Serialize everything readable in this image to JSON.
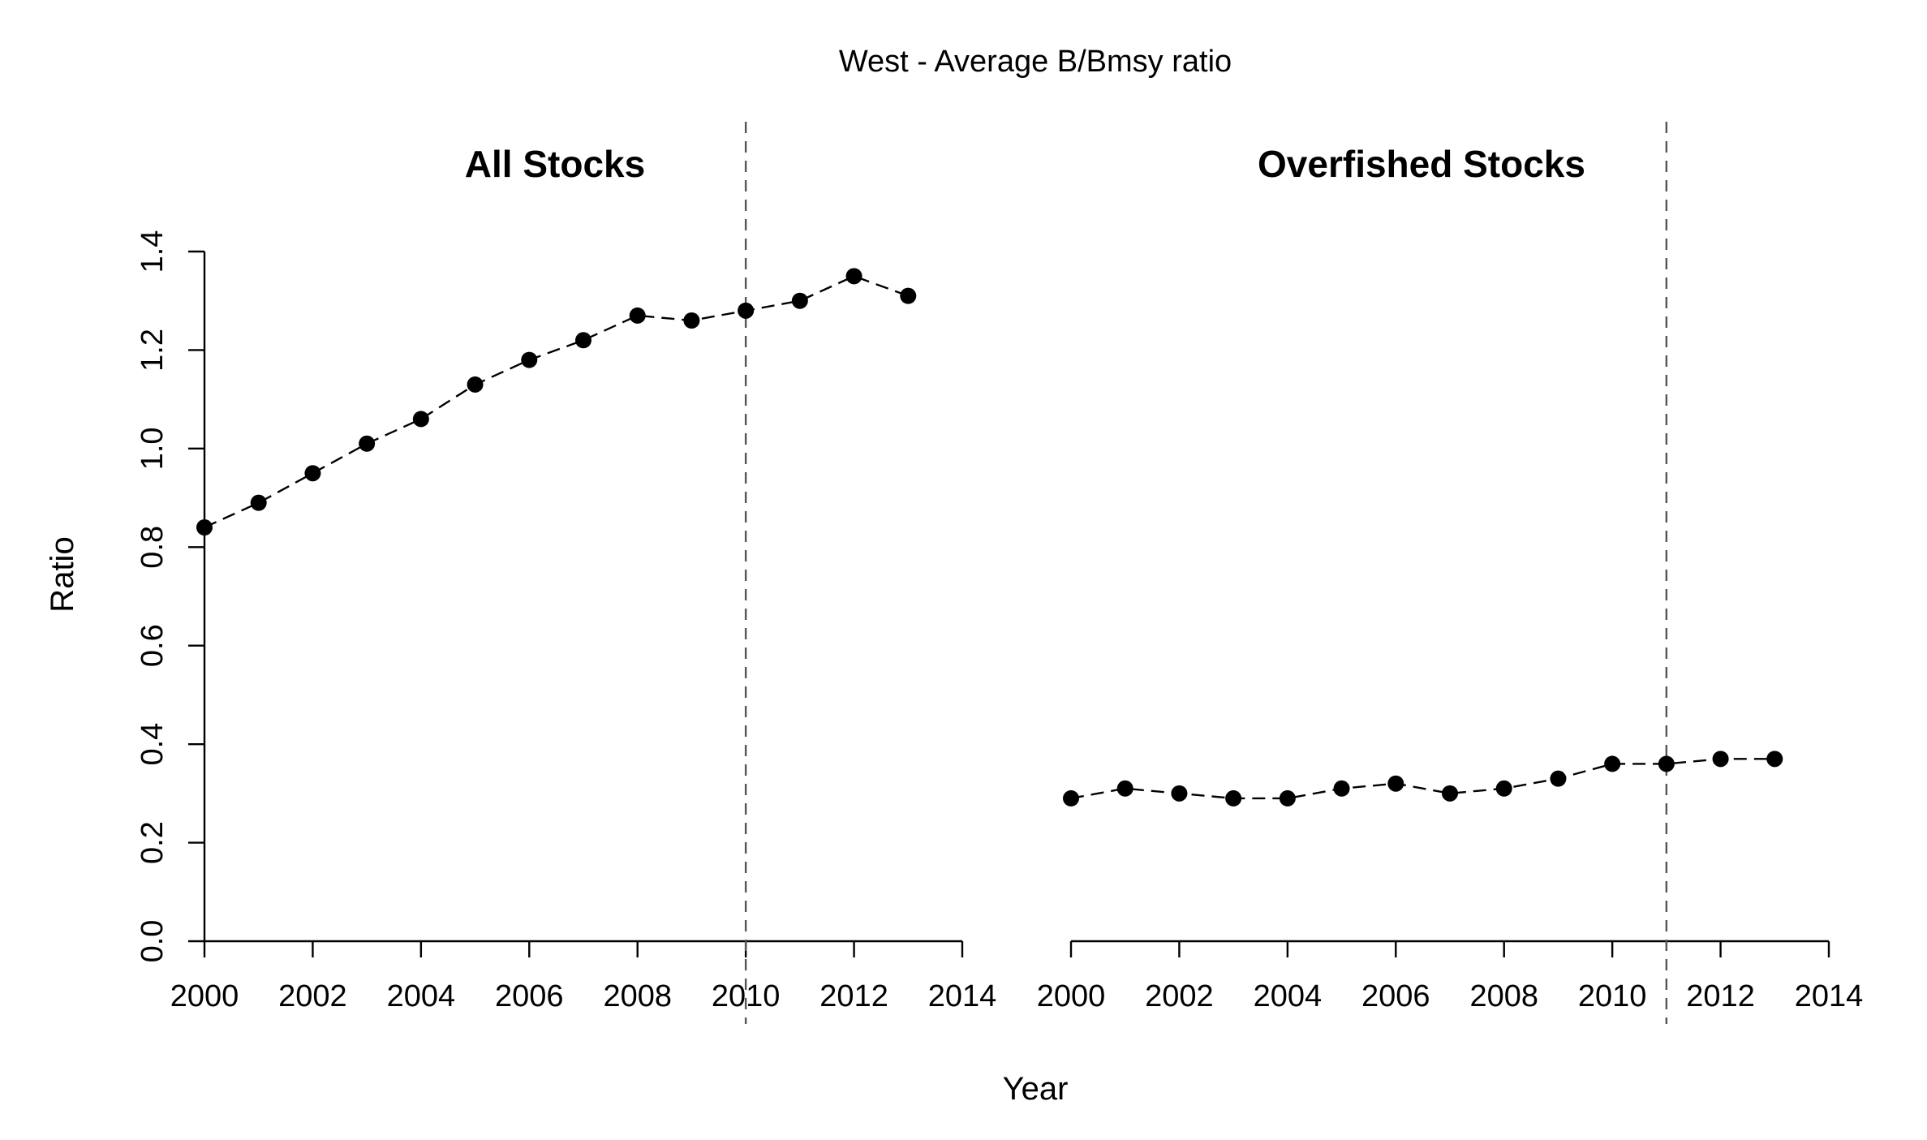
{
  "figure": {
    "title": "West - Average B/Bmsy ratio",
    "xlabel": "Year",
    "ylabel": "Ratio"
  },
  "chart_data": [
    {
      "type": "line",
      "title": "All Stocks",
      "xlabel": "Year",
      "ylabel": "Ratio",
      "xlim": [
        2000,
        2014
      ],
      "ylim": [
        0,
        1.4
      ],
      "x_ticks": [
        2000,
        2002,
        2004,
        2006,
        2008,
        2010,
        2012,
        2014
      ],
      "y_ticks": [
        "0.0",
        "0.2",
        "0.4",
        "0.6",
        "0.8",
        "1.0",
        "1.2",
        "1.4"
      ],
      "grid": false,
      "reference_line_x": 2010,
      "series": [
        {
          "marker": "filled-circle",
          "line_style": "dashed",
          "x": [
            2000,
            2001,
            2002,
            2003,
            2004,
            2005,
            2006,
            2007,
            2008,
            2009,
            2010,
            2011,
            2012,
            2013
          ],
          "values": [
            0.84,
            0.89,
            0.95,
            1.01,
            1.06,
            1.13,
            1.18,
            1.22,
            1.27,
            1.26,
            1.28,
            1.3,
            1.35,
            1.31
          ]
        }
      ]
    },
    {
      "type": "line",
      "title": "Overfished Stocks",
      "xlabel": "Year",
      "ylabel": "Ratio",
      "xlim": [
        2000,
        2014
      ],
      "ylim": [
        0,
        1.4
      ],
      "x_ticks": [
        2000,
        2002,
        2004,
        2006,
        2008,
        2010,
        2012,
        2014
      ],
      "y_ticks": [],
      "grid": false,
      "reference_line_x": 2011,
      "series": [
        {
          "marker": "filled-circle",
          "line_style": "dashed",
          "x": [
            2000,
            2001,
            2002,
            2003,
            2004,
            2005,
            2006,
            2007,
            2008,
            2009,
            2010,
            2011,
            2012,
            2013
          ],
          "values": [
            0.29,
            0.31,
            0.3,
            0.29,
            0.29,
            0.31,
            0.32,
            0.3,
            0.31,
            0.33,
            0.36,
            0.36,
            0.37,
            0.37
          ]
        }
      ]
    }
  ]
}
